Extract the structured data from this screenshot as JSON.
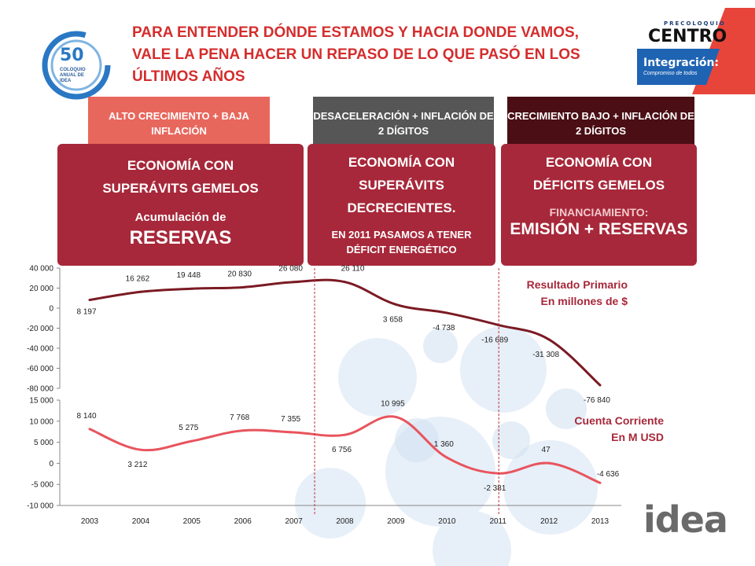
{
  "header": {
    "title": "PARA ENTENDER DÓNDE ESTAMOS Y HACIA DONDE VAMOS, VALE LA PENA HACER UN REPASO DE LO QUE PASÓ EN LOS ÚLTIMOS AÑOS"
  },
  "logos": {
    "coloquio_num": "50",
    "coloquio_text": "COLOQUIO ANUAL DE IDEA",
    "precoloquio": "PRECOLOQUIO",
    "centro": "CENTRO",
    "integracion": "Integración:",
    "compromiso": "Compromiso de todos",
    "idea": "idea"
  },
  "tags": [
    {
      "label": "ALTO CRECIMIENTO + BAJA INFLACIÓN",
      "color": "#e8675d"
    },
    {
      "label": "DESACELERACIÓN + INFLACIÓN DE 2 DÍGITOS",
      "color": "#565656"
    },
    {
      "label": "CRECIMIENTO BAJO + INFLACIÓN DE 2 DÍGITOS",
      "color": "#4a0e14"
    }
  ],
  "panels": [
    {
      "heading": "ECONOMÍA CON SUPERÁVITS GEMELOS",
      "sub": "Acumulación de",
      "big": "RESERVAS"
    },
    {
      "heading": "ECONOMÍA CON SUPERÁVITS DECRECIENTES.",
      "note": "EN 2011 PASAMOS A TENER DÉFICIT ENERGÉTICO"
    },
    {
      "heading": "ECONOMÍA CON DÉFICITS GEMELOS",
      "sub": "FINANCIAMIENTO:",
      "big": "EMISIÓN + RESERVAS"
    }
  ],
  "chart_data": [
    {
      "type": "line",
      "series": [
        {
          "name": "Resultado Primario En millones de $",
          "values": [
            8197,
            16262,
            19448,
            20830,
            26080,
            26110,
            3658,
            -4738,
            -16689,
            -31308,
            -76840
          ]
        }
      ],
      "x": [
        "2003",
        "2004",
        "2005",
        "2006",
        "2007",
        "2008",
        "2009",
        "2010",
        "2011",
        "2012",
        "2013"
      ],
      "data_labels": [
        "8 197",
        "16 262",
        "19 448",
        "20 830",
        "26 080",
        "26 110",
        "3 658",
        "-4 738",
        "-16 689",
        "-31 308",
        "-76 840"
      ],
      "ylim": [
        -80000,
        40000
      ],
      "yticks": [
        "40 000",
        "20 000",
        "0",
        "-20 000",
        "-40 000",
        "-60 000",
        "-80 000"
      ],
      "color": "#7b1a24",
      "label_line1": "Resultado Primario",
      "label_line2": "En millones de $"
    },
    {
      "type": "line",
      "series": [
        {
          "name": "Cuenta Corriente En M USD",
          "values": [
            8140,
            3212,
            5275,
            7768,
            7355,
            6756,
            10995,
            1360,
            -2381,
            47,
            -4636
          ]
        }
      ],
      "x": [
        "2003",
        "2004",
        "2005",
        "2006",
        "2007",
        "2008",
        "2009",
        "2010",
        "2011",
        "2012",
        "2013"
      ],
      "data_labels": [
        "8 140",
        "3 212",
        "5 275",
        "7 768",
        "7 355",
        "6 756",
        "10 995",
        "1 360",
        "-2 381",
        "47",
        "-4 636"
      ],
      "ylim": [
        -10000,
        15000
      ],
      "yticks": [
        "15 000",
        "10 000",
        "5 000",
        "0",
        "-5 000",
        "-10 000"
      ],
      "color": "#e8545e",
      "label_line1": "Cuenta Corriente",
      "label_line2": "En M USD"
    }
  ],
  "colors": {
    "title": "#d42d2d",
    "panel": "#a7283a",
    "divider": "#c0303a"
  }
}
